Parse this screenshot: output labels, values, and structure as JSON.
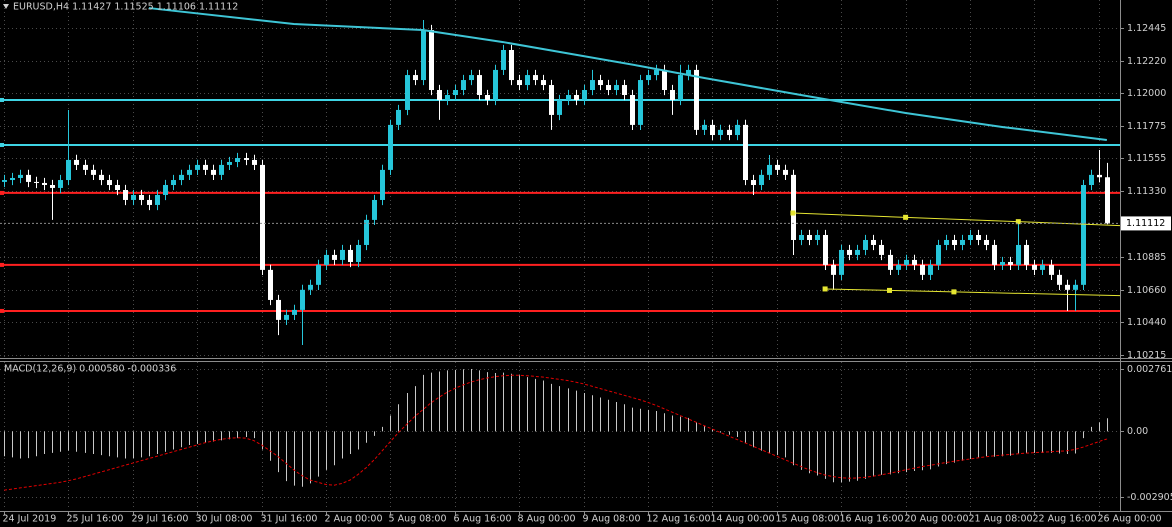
{
  "chart_data": [
    {
      "type": "candlestick",
      "title": "EURUSD,H4  1.11427 1.11525 1.11106 1.11112",
      "categories": [
        "24 Jul 2019",
        null,
        null,
        null,
        null,
        null,
        null,
        null,
        "25 Jul 16:00",
        null,
        null,
        null,
        null,
        null,
        null,
        null,
        "29 Jul 16:00",
        null,
        null,
        null,
        null,
        null,
        null,
        null,
        "30 Jul 08:00",
        null,
        null,
        null,
        null,
        null,
        null,
        null,
        "31 Jul 16:00",
        null,
        null,
        null,
        null,
        null,
        null,
        null,
        "2 Aug 00:00",
        null,
        null,
        null,
        null,
        null,
        null,
        null,
        "5 Aug 08:00",
        null,
        null,
        null,
        null,
        null,
        null,
        null,
        "6 Aug 16:00",
        null,
        null,
        null,
        null,
        null,
        null,
        null,
        "8 Aug 00:00",
        null,
        null,
        null,
        null,
        null,
        null,
        null,
        "9 Aug 08:00",
        null,
        null,
        null,
        null,
        null,
        null,
        null,
        "12 Aug 16:00",
        null,
        null,
        null,
        null,
        null,
        null,
        null,
        "14 Aug 00:00",
        null,
        null,
        null,
        null,
        null,
        null,
        null,
        "15 Aug 08:00",
        null,
        null,
        null,
        null,
        null,
        null,
        null,
        "16 Aug 16:00",
        null,
        null,
        null,
        null,
        null,
        null,
        null,
        "20 Aug 00:00",
        null,
        null,
        null,
        null,
        null,
        null,
        null,
        "21 Aug 08:00",
        null,
        null,
        null,
        null,
        null,
        null,
        null,
        "22 Aug 16:00",
        null,
        null,
        null,
        null,
        null,
        null,
        null,
        "26 Aug 00:00",
        null
      ],
      "open": [
        1.11395,
        1.11408,
        1.11422,
        1.11443,
        1.11395,
        1.11388,
        1.11374,
        1.11354,
        1.11408,
        1.11545,
        1.11511,
        1.11477,
        1.11443,
        1.11408,
        1.11374,
        1.1134,
        1.11272,
        1.11306,
        1.11272,
        1.11238,
        1.11306,
        1.11374,
        1.11408,
        1.11443,
        1.11477,
        1.11511,
        1.11477,
        1.11443,
        1.11511,
        1.11531,
        1.11558,
        1.11545,
        1.11511,
        1.10795,
        1.1059,
        1.10454,
        1.10488,
        1.10522,
        1.10659,
        1.10693,
        1.10829,
        1.10897,
        1.10863,
        1.10931,
        1.10849,
        1.10965,
        1.11136,
        1.11272,
        1.11477,
        1.11784,
        1.11886,
        1.12124,
        1.1209,
        1.12431,
        1.12022,
        1.11954,
        1.11988,
        1.12022,
        1.1209,
        1.12124,
        1.11988,
        1.11954,
        1.12159,
        1.12295,
        1.1209,
        1.12056,
        1.12124,
        1.1209,
        1.12056,
        1.11852,
        1.11954,
        1.11988,
        1.11954,
        1.12022,
        1.1209,
        1.12056,
        1.12022,
        1.12056,
        1.11988,
        1.11784,
        1.1209,
        1.12124,
        1.12159,
        1.12022,
        1.11954,
        1.12124,
        1.12159,
        1.1175,
        1.11784,
        1.11715,
        1.1175,
        1.11715,
        1.11784,
        1.11408,
        1.11374,
        1.11443,
        1.11511,
        1.11477,
        1.11443,
        1.10999,
        1.11033,
        1.10999,
        1.11033,
        1.10829,
        1.10761,
        1.10931,
        1.10897,
        1.10931,
        1.10999,
        1.10965,
        1.10897,
        1.10795,
        1.10829,
        1.10863,
        1.10829,
        1.10761,
        1.10829,
        1.10965,
        1.10999,
        1.10965,
        1.10999,
        1.11033,
        1.10999,
        1.10965,
        1.10829,
        1.10849,
        1.10829,
        1.10965,
        1.10829,
        1.10795,
        1.10829,
        1.10761,
        1.10693,
        1.10659,
        1.10693,
        1.11374,
        1.11443,
        1.11427
      ],
      "high": [
        1.11443,
        1.11457,
        1.11478,
        1.11478,
        1.1143,
        1.11423,
        1.11409,
        1.11443,
        1.11886,
        1.1158,
        1.11546,
        1.11512,
        1.11478,
        1.11443,
        1.11409,
        1.11375,
        1.11341,
        1.11341,
        1.11307,
        1.11341,
        1.11409,
        1.11443,
        1.11478,
        1.11512,
        1.11546,
        1.11546,
        1.11512,
        1.11546,
        1.11566,
        1.11593,
        1.11593,
        1.1158,
        1.11546,
        1.1083,
        1.10625,
        1.10523,
        1.10557,
        1.10694,
        1.10728,
        1.10864,
        1.10932,
        1.10932,
        1.10966,
        1.10966,
        1.11,
        1.11171,
        1.11307,
        1.11512,
        1.11819,
        1.11921,
        1.12159,
        1.12159,
        1.125,
        1.12466,
        1.12057,
        1.12023,
        1.12057,
        1.12125,
        1.12159,
        1.12159,
        1.12023,
        1.12194,
        1.1233,
        1.1233,
        1.12125,
        1.12159,
        1.12159,
        1.12125,
        1.12091,
        1.11989,
        1.12023,
        1.12023,
        1.12057,
        1.12159,
        1.12125,
        1.12091,
        1.12091,
        1.12091,
        1.12023,
        1.12125,
        1.12159,
        1.12194,
        1.12194,
        1.12057,
        1.12194,
        1.12194,
        1.12194,
        1.11819,
        1.11819,
        1.11785,
        1.11785,
        1.11819,
        1.11819,
        1.11443,
        1.11478,
        1.11579,
        1.11546,
        1.11512,
        1.11478,
        1.11068,
        1.11068,
        1.11068,
        1.11068,
        1.10864,
        1.10966,
        1.10966,
        1.10966,
        1.11034,
        1.11034,
        1.11,
        1.10932,
        1.10864,
        1.10898,
        1.10898,
        1.10864,
        1.10864,
        1.11,
        1.11034,
        1.11034,
        1.11034,
        1.11068,
        1.11068,
        1.11034,
        1.11,
        1.10884,
        1.10884,
        1.11136,
        1.11,
        1.10864,
        1.10864,
        1.10864,
        1.10796,
        1.10728,
        1.10728,
        1.11409,
        1.11478,
        1.11613,
        1.11525
      ],
      "low": [
        1.1136,
        1.11373,
        1.11387,
        1.1136,
        1.11353,
        1.11339,
        1.11136,
        1.11319,
        1.11373,
        1.11476,
        1.11442,
        1.11408,
        1.11373,
        1.11339,
        1.11305,
        1.11237,
        1.11237,
        1.11237,
        1.11203,
        1.11203,
        1.11271,
        1.11339,
        1.11373,
        1.11408,
        1.11442,
        1.11442,
        1.11408,
        1.11408,
        1.11476,
        1.11496,
        1.1151,
        1.11476,
        1.1076,
        1.10555,
        1.1035,
        1.10419,
        1.10453,
        1.10283,
        1.10624,
        1.10658,
        1.10794,
        1.10828,
        1.10828,
        1.10814,
        1.10814,
        1.1093,
        1.11101,
        1.11237,
        1.11442,
        1.11749,
        1.11851,
        1.12055,
        1.12055,
        1.11987,
        1.11818,
        1.11919,
        1.11953,
        1.11987,
        1.12055,
        1.11953,
        1.11919,
        1.11919,
        1.12124,
        1.12055,
        1.12021,
        1.12021,
        1.12055,
        1.12021,
        1.1175,
        1.11817,
        1.11919,
        1.11919,
        1.11919,
        1.11987,
        1.12021,
        1.11987,
        1.11987,
        1.11953,
        1.11749,
        1.11749,
        1.12055,
        1.12089,
        1.11987,
        1.11852,
        1.11919,
        1.12089,
        1.11715,
        1.11715,
        1.1168,
        1.1168,
        1.1168,
        1.1168,
        1.11373,
        1.11306,
        1.11339,
        1.11408,
        1.11442,
        1.11408,
        1.10897,
        1.10964,
        1.10964,
        1.10964,
        1.10794,
        1.10659,
        1.10726,
        1.10862,
        1.10862,
        1.10896,
        1.1093,
        1.10862,
        1.1076,
        1.1076,
        1.10794,
        1.10794,
        1.10726,
        1.10726,
        1.10794,
        1.1093,
        1.1093,
        1.1093,
        1.10964,
        1.10964,
        1.1093,
        1.10794,
        1.10794,
        1.10794,
        1.10794,
        1.10794,
        1.1076,
        1.1076,
        1.10726,
        1.10658,
        1.10515,
        1.10515,
        1.10658,
        1.11339,
        1.11392,
        1.11106
      ],
      "close": [
        1.11408,
        1.11422,
        1.11443,
        1.11395,
        1.11388,
        1.11374,
        1.11354,
        1.11408,
        1.11545,
        1.11511,
        1.11477,
        1.11443,
        1.11408,
        1.11374,
        1.1134,
        1.11272,
        1.11306,
        1.11272,
        1.11238,
        1.11306,
        1.11374,
        1.11408,
        1.11443,
        1.11477,
        1.11511,
        1.11477,
        1.11443,
        1.11511,
        1.11531,
        1.11558,
        1.11545,
        1.11511,
        1.10795,
        1.1059,
        1.10454,
        1.10488,
        1.10522,
        1.10659,
        1.10693,
        1.10829,
        1.10897,
        1.10863,
        1.10931,
        1.10849,
        1.10965,
        1.11136,
        1.11272,
        1.11477,
        1.11784,
        1.11886,
        1.12124,
        1.1209,
        1.12431,
        1.12022,
        1.11954,
        1.11988,
        1.12022,
        1.1209,
        1.12124,
        1.11988,
        1.11954,
        1.12159,
        1.12295,
        1.1209,
        1.12056,
        1.12124,
        1.1209,
        1.12056,
        1.11852,
        1.11954,
        1.11988,
        1.11954,
        1.12022,
        1.1209,
        1.12056,
        1.12022,
        1.12056,
        1.11988,
        1.11784,
        1.1209,
        1.12124,
        1.12159,
        1.12022,
        1.11954,
        1.12124,
        1.12159,
        1.1175,
        1.11784,
        1.11715,
        1.1175,
        1.11715,
        1.11784,
        1.11408,
        1.11374,
        1.11443,
        1.11511,
        1.11477,
        1.11443,
        1.10999,
        1.11033,
        1.10999,
        1.11033,
        1.10829,
        1.10761,
        1.10931,
        1.10897,
        1.10931,
        1.10999,
        1.10965,
        1.10897,
        1.10795,
        1.10829,
        1.10863,
        1.10829,
        1.10761,
        1.10829,
        1.10965,
        1.10999,
        1.10965,
        1.10999,
        1.11033,
        1.10999,
        1.10965,
        1.10829,
        1.10849,
        1.10829,
        1.10965,
        1.10829,
        1.10795,
        1.10829,
        1.10761,
        1.10693,
        1.10659,
        1.10693,
        1.11374,
        1.11443,
        1.11427,
        1.11112
      ],
      "up_color": "#26c6da",
      "down_color": "#ffffff",
      "ma": {
        "x": [
          18,
          36,
          52,
          62,
          79,
          87,
          99,
          112,
          124,
          137
        ],
        "values": [
          1.12581,
          1.12472,
          1.12431,
          1.12349,
          1.12186,
          1.12104,
          1.11988,
          1.11865,
          1.1177,
          1.11681
        ],
        "color": "#3ec5d6"
      },
      "hlines": [
        {
          "value": 1.11954,
          "color": "#3fd4e4"
        },
        {
          "value": 1.11647,
          "color": "#3fd4e4"
        },
        {
          "value": 1.1132,
          "color": "#ff2020"
        },
        {
          "value": 1.10829,
          "color": "#ff2020"
        },
        {
          "value": 1.10515,
          "color": "#ff2020"
        }
      ],
      "trendlines": [
        {
          "x": [
            98,
            126
          ],
          "values": [
            1.11183,
            1.11124
          ],
          "color": "#e6e632"
        },
        {
          "x": [
            102,
            118
          ],
          "values": [
            1.10665,
            1.10645
          ],
          "color": "#e6e632"
        }
      ],
      "price_line_color": "#8a8a8a",
      "ylim": [
        1.10194,
        1.12636
      ],
      "yticks": [
        1.12445,
        {
          "value": 1.1222,
          "label": "1.12220"
        },
        {
          "value": 1.12,
          "label": "1.12000"
        },
        1.11775,
        1.11555,
        {
          "value": 1.1133,
          "label": "1.11330"
        },
        1.10885,
        {
          "value": 1.1066,
          "label": "1.10660"
        },
        {
          "value": 1.1044,
          "label": "1.10440"
        },
        1.10215
      ],
      "grid": true
    },
    {
      "type": "macd",
      "title": "MACD(12,26,9) 0.000580 -0.000336",
      "histogram": {
        "color": "#c8c8c8",
        "values": [
          -0.0011,
          -0.00115,
          -0.0012,
          -0.00118,
          -0.0011,
          -0.001,
          -0.00095,
          -0.0009,
          -0.00085,
          -0.0009,
          -0.00095,
          -0.001,
          -0.00105,
          -0.0011,
          -0.00115,
          -0.0012,
          -0.00118,
          -0.00115,
          -0.0011,
          -0.001,
          -0.0009,
          -0.0008,
          -0.0007,
          -0.0006,
          -0.00055,
          -0.0005,
          -0.00045,
          -0.0004,
          -0.00035,
          -0.0003,
          -0.00025,
          -0.0003,
          -0.0008,
          -0.0013,
          -0.0018,
          -0.0022,
          -0.0024,
          -0.00245,
          -0.0023,
          -0.002,
          -0.0017,
          -0.0015,
          -0.0012,
          -0.001,
          -0.0008,
          -0.0005,
          -0.0002,
          0.0002,
          0.0007,
          0.0012,
          0.0017,
          0.002,
          0.0025,
          0.0026,
          0.00265,
          0.0027,
          0.00272,
          0.00275,
          0.00276,
          0.0027,
          0.00262,
          0.00258,
          0.0026,
          0.00255,
          0.00248,
          0.0024,
          0.00232,
          0.00225,
          0.0021,
          0.002,
          0.0019,
          0.0018,
          0.0017,
          0.0016,
          0.0015,
          0.0014,
          0.0013,
          0.0012,
          0.00105,
          0.001,
          0.00095,
          0.0009,
          0.0008,
          0.0007,
          0.00065,
          0.0006,
          0.0004,
          0.00025,
          0.0001,
          -5e-05,
          -0.00015,
          -0.00025,
          -0.0005,
          -0.0007,
          -0.00085,
          -0.00095,
          -0.00105,
          -0.00115,
          -0.0015,
          -0.0017,
          -0.00185,
          -0.00195,
          -0.0021,
          -0.00225,
          -0.00225,
          -0.00222,
          -0.00218,
          -0.0021,
          -0.002,
          -0.00192,
          -0.0019,
          -0.00185,
          -0.0018,
          -0.00175,
          -0.00172,
          -0.00168,
          -0.00155,
          -0.00145,
          -0.00138,
          -0.0013,
          -0.00122,
          -0.00115,
          -0.0011,
          -0.00112,
          -0.0011,
          -0.00108,
          -0.001,
          -0.00098,
          -0.00095,
          -0.00095,
          -0.00095,
          -0.00098,
          -0.001,
          -0.00098,
          -0.0003,
          0.0002,
          0.0004,
          0.00058
        ]
      },
      "signal": {
        "color": "#e00000",
        "values": [
          -0.0026,
          -0.00255,
          -0.0025,
          -0.00245,
          -0.0024,
          -0.00235,
          -0.0023,
          -0.00225,
          -0.00218,
          -0.0021,
          -0.002,
          -0.0019,
          -0.0018,
          -0.0017,
          -0.0016,
          -0.0015,
          -0.0014,
          -0.0013,
          -0.0012,
          -0.0011,
          -0.001,
          -0.0009,
          -0.0008,
          -0.0007,
          -0.0006,
          -0.0005,
          -0.00042,
          -0.00035,
          -0.0003,
          -0.00028,
          -0.0003,
          -0.0004,
          -0.0006,
          -0.00085,
          -0.0011,
          -0.0014,
          -0.0017,
          -0.00195,
          -0.00215,
          -0.00225,
          -0.00235,
          -0.00238,
          -0.0023,
          -0.00215,
          -0.0019,
          -0.0016,
          -0.00125,
          -0.00085,
          -0.00045,
          -5e-05,
          0.0003,
          0.00065,
          0.00095,
          0.00125,
          0.0015,
          0.00172,
          0.0019,
          0.00205,
          0.00218,
          0.00228,
          0.00236,
          0.00242,
          0.00246,
          0.00248,
          0.00248,
          0.00246,
          0.00243,
          0.0024,
          0.00235,
          0.0023,
          0.00225,
          0.00218,
          0.0021,
          0.002,
          0.0019,
          0.0018,
          0.0017,
          0.0016,
          0.0015,
          0.0014,
          0.00128,
          0.00115,
          0.001,
          0.00085,
          0.0007,
          0.00055,
          0.0004,
          0.00025,
          0.0001,
          -5e-05,
          -0.0002,
          -0.00035,
          -0.0005,
          -0.00065,
          -0.0008,
          -0.00095,
          -0.0011,
          -0.00125,
          -0.0014,
          -0.00155,
          -0.0017,
          -0.00182,
          -0.00193,
          -0.002,
          -0.00205,
          -0.00207,
          -0.00206,
          -0.00203,
          -0.00198,
          -0.00192,
          -0.00185,
          -0.00178,
          -0.0017,
          -0.00163,
          -0.00156,
          -0.0015,
          -0.00144,
          -0.00138,
          -0.00132,
          -0.00127,
          -0.00122,
          -0.00117,
          -0.00112,
          -0.00108,
          -0.00105,
          -0.00102,
          -0.00099,
          -0.00096,
          -0.00094,
          -0.00092,
          -0.0009,
          -0.00088,
          -0.00086,
          -0.0008,
          -0.0007,
          -0.00058,
          -0.00045,
          -0.000336
        ]
      },
      "ylim": [
        -0.003476,
        0.003068
      ],
      "yticks": [
        0.002761,
        {
          "value": 0,
          "label": "0.00"
        },
        -0.002905
      ],
      "grid": true
    }
  ]
}
